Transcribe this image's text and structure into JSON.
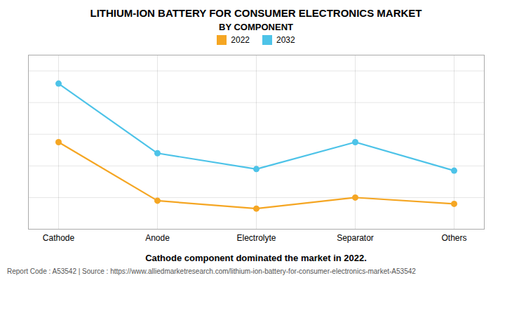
{
  "chart_data": {
    "type": "line",
    "title": "LITHIUM-ION BATTERY FOR CONSUMER ELECTRONICS MARKET",
    "subtitle": "BY COMPONENT",
    "annotations": [
      "Cathode component dominated the market in 2022.",
      "Report Code : A53542  |  Source : https://www.alliedmarketresearch.com/lithium-ion-battery-for-consumer-electronics-market-A53542"
    ],
    "categories": [
      "Cathode",
      "Anode",
      "Electrolyte",
      "Separator",
      "Others"
    ],
    "series": [
      {
        "name": "2022",
        "color": "#F5A623",
        "values": [
          55,
          18,
          13,
          20,
          16
        ]
      },
      {
        "name": "2032",
        "color": "#4DC3E8",
        "values": [
          92,
          48,
          38,
          55,
          37
        ]
      }
    ],
    "ylim": [
      0,
      110
    ],
    "yticks": [
      0,
      20,
      40,
      60,
      80,
      100
    ],
    "grid": true,
    "legend": "top",
    "tick_labels": "x",
    "marker": "circle"
  }
}
